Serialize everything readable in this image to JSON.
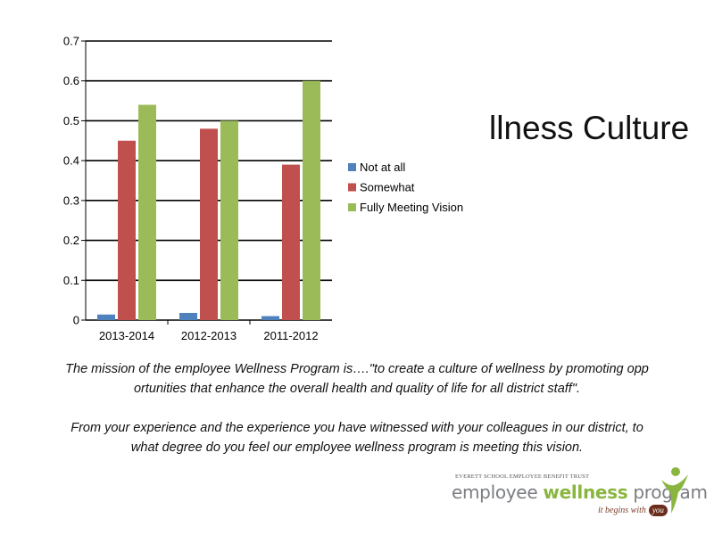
{
  "slide": {
    "title": "llness Culture"
  },
  "chart_data": {
    "type": "bar",
    "categories": [
      "2013-2014",
      "2012-2013",
      "2011-2012"
    ],
    "series": [
      {
        "name": "Not at all",
        "values": [
          0.014,
          0.018,
          0.01
        ],
        "color": "#4f81bd"
      },
      {
        "name": "Somewhat",
        "values": [
          0.45,
          0.48,
          0.39
        ],
        "color": "#c0504d"
      },
      {
        "name": "Fully Meeting Vision",
        "values": [
          0.54,
          0.5,
          0.6
        ],
        "color": "#9bbb59"
      }
    ],
    "ylim": [
      0,
      0.7
    ],
    "yticks": [
      "0",
      "0.1",
      "0.2",
      "0.3",
      "0.4",
      "0.5",
      "0.6",
      "0.7"
    ],
    "xlabel": "",
    "ylabel": "",
    "grid": true,
    "legend_position": "right"
  },
  "mission": {
    "paragraph1_line1": "The mission of the employee Wellness Program is….\"to create a culture of wellness by promoting opp",
    "paragraph1_line2": "ortunities that enhance the overall health and quality of life for all district staff\".",
    "paragraph2_line1": "From your experience and the experience you have witnessed with your colleagues in our   district, to",
    "paragraph2_line2": "what degree do you feel our employee wellness program is meeting this vision."
  },
  "logo": {
    "trust": "EVERETT SCHOOL EMPLOYEE BENEFIT TRUST",
    "word1": "employee ",
    "word2": "wellness",
    "word3": " program",
    "tagline": "it begins with",
    "you": "you"
  }
}
